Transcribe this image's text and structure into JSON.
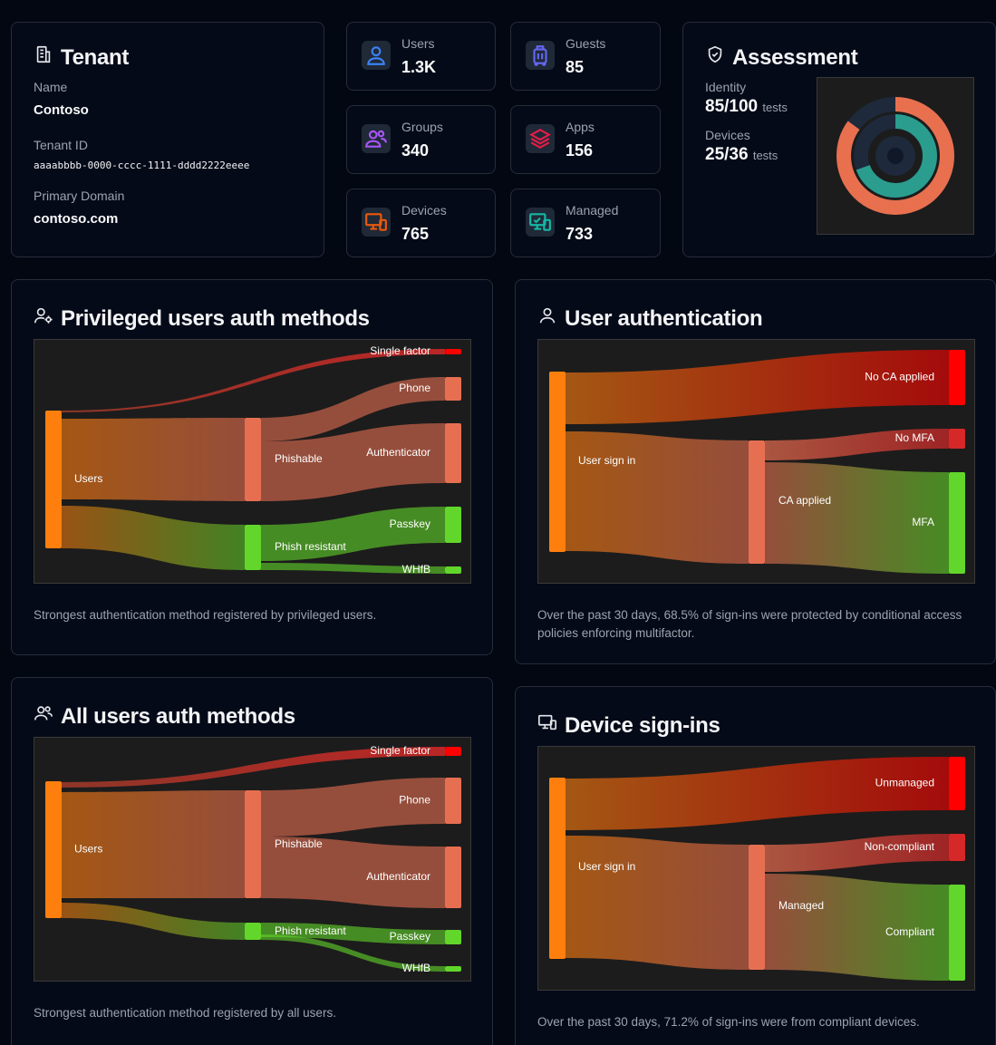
{
  "tenant": {
    "title": "Tenant",
    "name_label": "Name",
    "name_value": "Contoso",
    "id_label": "Tenant ID",
    "id_value": "aaaabbbb-0000-cccc-1111-dddd2222eeee",
    "domain_label": "Primary Domain",
    "domain_value": "contoso.com"
  },
  "stats": {
    "users": {
      "label": "Users",
      "value": "1.3K",
      "icon": "user-icon",
      "color": "#3b82f6"
    },
    "guests": {
      "label": "Guests",
      "value": "85",
      "icon": "luggage-icon",
      "color": "#6366f1"
    },
    "groups": {
      "label": "Groups",
      "value": "340",
      "icon": "users-icon",
      "color": "#a855f7"
    },
    "apps": {
      "label": "Apps",
      "value": "156",
      "icon": "layers-icon",
      "color": "#e11d48"
    },
    "devices": {
      "label": "Devices",
      "value": "765",
      "icon": "devices-icon",
      "color": "#ea580c"
    },
    "managed": {
      "label": "Managed",
      "value": "733",
      "icon": "managed-devices-icon",
      "color": "#14b8a6"
    }
  },
  "assessment": {
    "title": "Assessment",
    "identity_label": "Identity",
    "identity_value": "85/100",
    "identity_suffix": "tests",
    "devices_label": "Devices",
    "devices_value": "25/36",
    "devices_suffix": "tests",
    "identity_fraction": 0.85,
    "devices_fraction": 0.694,
    "identity_color": "#e8704f",
    "devices_color": "#2a9d8f"
  },
  "panels": {
    "privileged": {
      "title": "Privileged users auth methods",
      "caption": "Strongest authentication method registered by privileged users.",
      "nodes": {
        "users": "Users",
        "phishable": "Phishable",
        "phish_resistant": "Phish resistant",
        "single_factor": "Single factor",
        "phone": "Phone",
        "authenticator": "Authenticator",
        "passkey": "Passkey",
        "whfb": "WHfB"
      }
    },
    "user_auth": {
      "title": "User authentication",
      "caption": "Over the past 30 days, 68.5% of sign-ins were protected by conditional access policies enforcing multifactor.",
      "nodes": {
        "user_sign_in": "User sign in",
        "no_ca": "No CA applied",
        "ca_applied": "CA applied",
        "no_mfa": "No MFA",
        "mfa": "MFA"
      }
    },
    "all_users": {
      "title": "All users auth methods",
      "caption": "Strongest authentication method registered by all users.",
      "nodes": {
        "users": "Users",
        "phishable": "Phishable",
        "phish_resistant": "Phish resistant",
        "single_factor": "Single factor",
        "phone": "Phone",
        "authenticator": "Authenticator",
        "passkey": "Passkey",
        "whfb": "WHfB"
      }
    },
    "device": {
      "title": "Device sign-ins",
      "caption": "Over the past 30 days, 71.2% of sign-ins were from compliant devices.",
      "nodes": {
        "user_sign_in": "User sign in",
        "unmanaged": "Unmanaged",
        "managed": "Managed",
        "non_compliant": "Non-compliant",
        "compliant": "Compliant"
      }
    }
  },
  "colors": {
    "source": "#ff7f0e",
    "mid": "#e76f51",
    "bad": "#ff0000",
    "warn": "#d62828",
    "good": "#62d62a"
  }
}
